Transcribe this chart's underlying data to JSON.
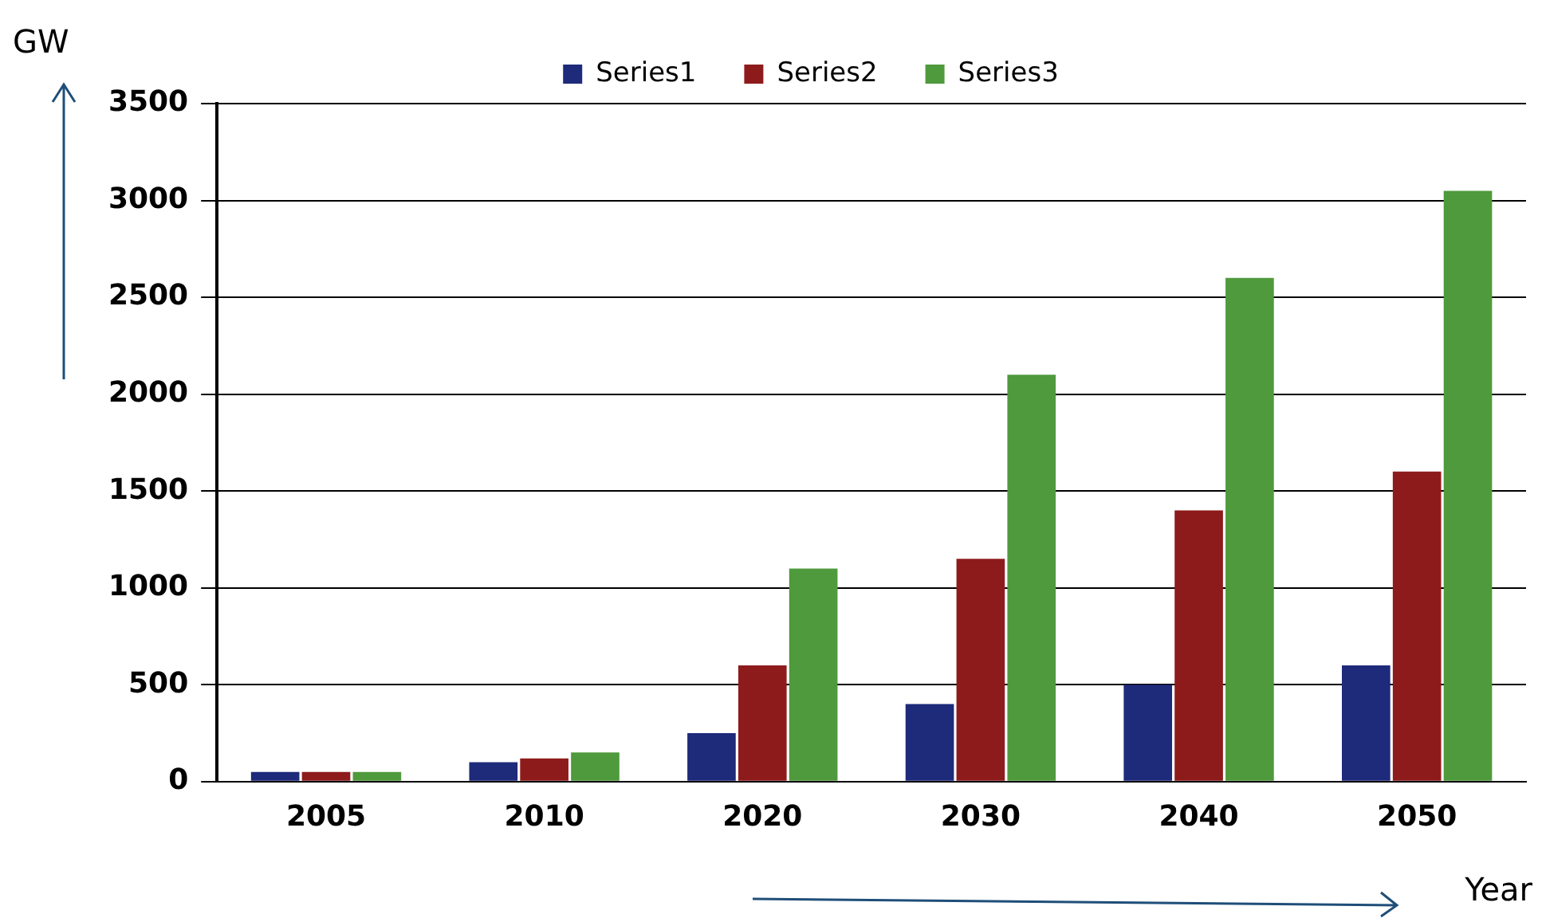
{
  "chart_data": {
    "type": "bar",
    "xlabel": "Year",
    "ylabel": "GW",
    "categories": [
      "2005",
      "2010",
      "2020",
      "2030",
      "2040",
      "2050"
    ],
    "series": [
      {
        "name": "Series1",
        "color": "#1e2a7a",
        "values": [
          50,
          100,
          250,
          400,
          500,
          600
        ]
      },
      {
        "name": "Series2",
        "color": "#8e1b1b",
        "values": [
          50,
          120,
          600,
          1150,
          1400,
          1600
        ]
      },
      {
        "name": "Series3",
        "color": "#4f9a3c",
        "values": [
          50,
          150,
          1100,
          2100,
          2600,
          3050
        ]
      }
    ],
    "ylim": [
      0,
      3500
    ],
    "yticks": [
      0,
      500,
      1000,
      1500,
      2000,
      2500,
      3000,
      3500
    ],
    "grid": "y",
    "legend": "top"
  }
}
